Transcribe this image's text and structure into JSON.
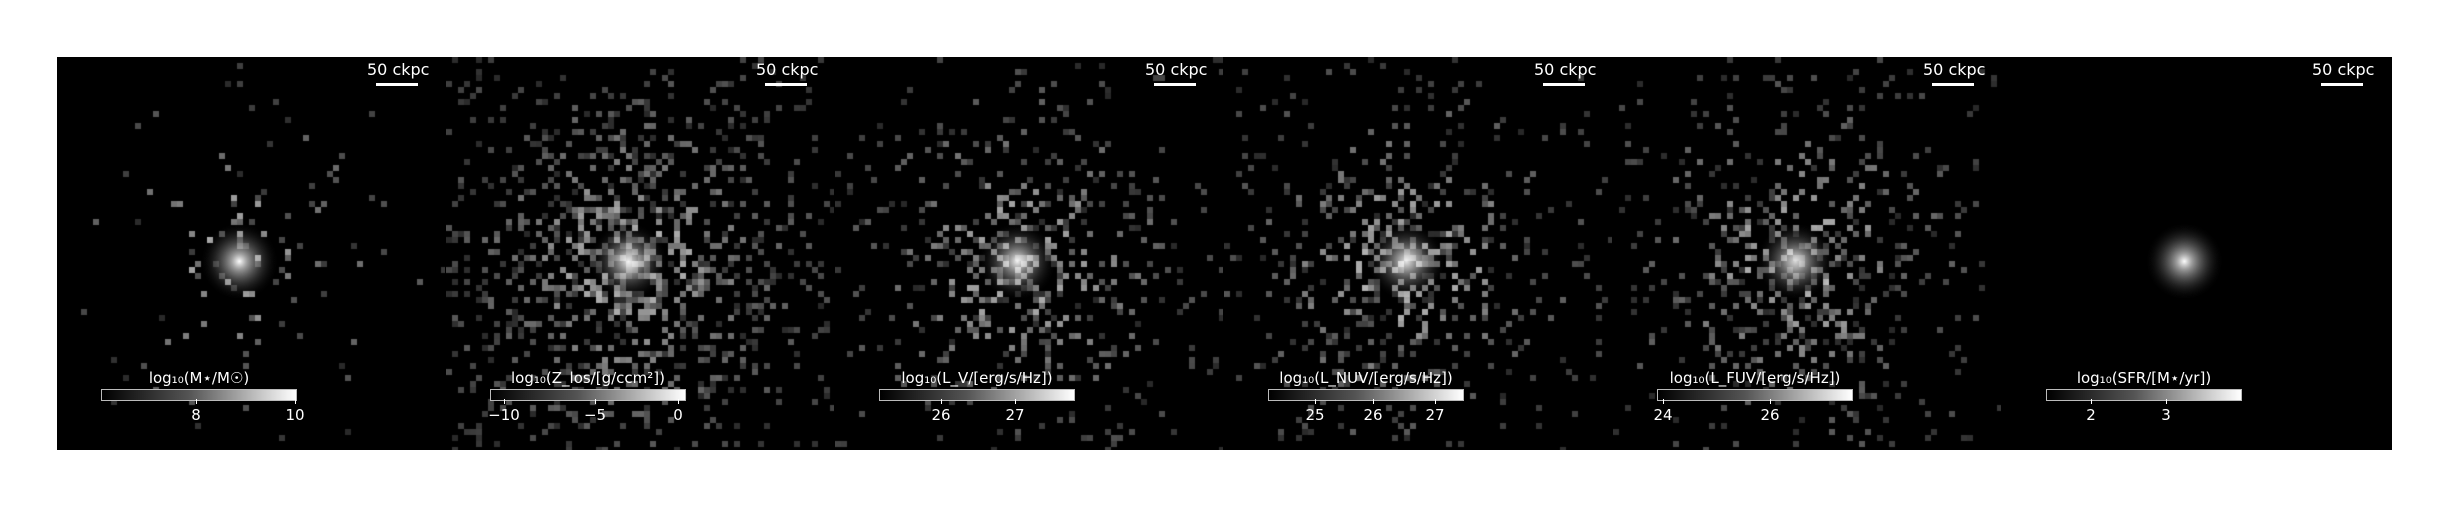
{
  "panels": [
    {
      "id": "stellar_mass",
      "scalebar": "50 ckpc",
      "colorbar_label": "log₁₀(M⋆/M☉)",
      "ticks": [
        {
          "label": "8",
          "frac": 0.49
        },
        {
          "label": "10",
          "frac": 1.0
        }
      ],
      "core_brightness": 1.0,
      "halo_extent": 0.35,
      "noise_density": 0.25
    },
    {
      "id": "metallicity",
      "scalebar": "50 ckpc",
      "colorbar_label": "log₁₀(Z_los/[g/ccm²])",
      "ticks": [
        {
          "label": "−10",
          "frac": 0.07
        },
        {
          "label": "−5",
          "frac": 0.54
        },
        {
          "label": "0",
          "frac": 0.97
        }
      ],
      "core_brightness": 0.9,
      "halo_extent": 0.8,
      "noise_density": 0.7
    },
    {
      "id": "lum_v",
      "scalebar": "50 ckpc",
      "colorbar_label": "log₁₀(L_V/[erg/s/Hz])",
      "ticks": [
        {
          "label": "26",
          "frac": 0.32
        },
        {
          "label": "27",
          "frac": 0.7
        }
      ],
      "core_brightness": 0.95,
      "halo_extent": 0.6,
      "noise_density": 0.55
    },
    {
      "id": "lum_nuv",
      "scalebar": "50 ckpc",
      "colorbar_label": "log₁₀(L_NUV/[erg/s/Hz])",
      "ticks": [
        {
          "label": "25",
          "frac": 0.24
        },
        {
          "label": "26",
          "frac": 0.54
        },
        {
          "label": "27",
          "frac": 0.86
        }
      ],
      "core_brightness": 0.9,
      "halo_extent": 0.6,
      "noise_density": 0.6
    },
    {
      "id": "lum_fuv",
      "scalebar": "50 ckpc",
      "colorbar_label": "log₁₀(L_FUV/[erg/s/Hz])",
      "ticks": [
        {
          "label": "24",
          "frac": 0.03
        },
        {
          "label": "26",
          "frac": 0.58
        }
      ],
      "core_brightness": 0.85,
      "halo_extent": 0.6,
      "noise_density": 0.6
    },
    {
      "id": "sfr",
      "scalebar": "50 ckpc",
      "colorbar_label": "log₁₀(SFR/[M⋆/yr])",
      "ticks": [
        {
          "label": "2",
          "frac": 0.23
        },
        {
          "label": "3",
          "frac": 0.62
        }
      ],
      "core_brightness": 1.0,
      "halo_extent": 0.05,
      "noise_density": 0.05
    }
  ]
}
